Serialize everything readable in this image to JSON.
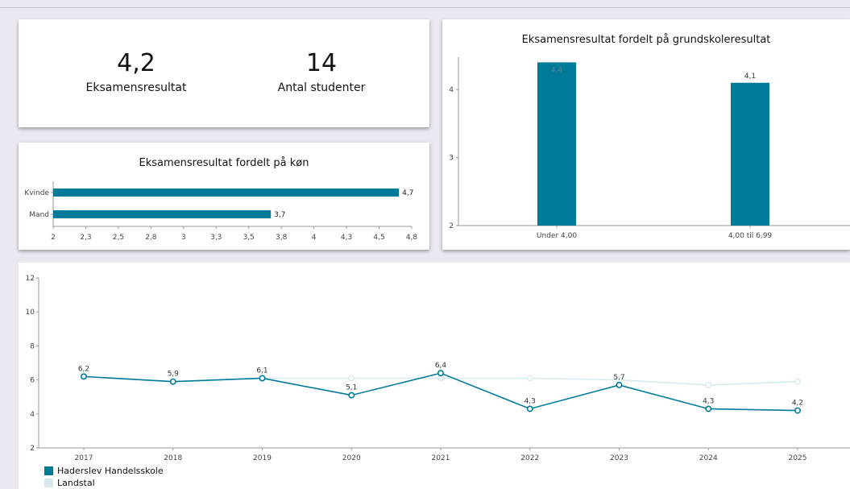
{
  "kpis": [
    {
      "value": "4,2",
      "label": "Eksamensresultat"
    },
    {
      "value": "14",
      "label": "Antal studenter"
    }
  ],
  "colors": {
    "primary": "#007a99",
    "secondary": "#d6e9ef",
    "axis": "#999999"
  },
  "chart_data": [
    {
      "type": "bar",
      "orientation": "horizontal",
      "title": "Eksamensresultat fordelt på køn",
      "categories": [
        "Kvinde",
        "Mand"
      ],
      "values": [
        4.7,
        3.7
      ],
      "data_labels": [
        "4,7",
        "3,7"
      ],
      "xlim": [
        2,
        4.8
      ],
      "xticks": [
        "2",
        "2,3",
        "2,5",
        "2,8",
        "3",
        "3,3",
        "3,5",
        "3,8",
        "4",
        "4,3",
        "4,5",
        "4,8"
      ],
      "grid": false
    },
    {
      "type": "bar",
      "title": "Eksamensresultat fordelt på grundskoleresultat",
      "categories": [
        "Under 4,00",
        "4,00 til 6,99"
      ],
      "values": [
        4.4,
        4.1
      ],
      "data_labels": [
        "4,4",
        "4,1"
      ],
      "ylim": [
        2,
        4.5
      ],
      "yticks": [
        "2",
        "3",
        "4"
      ],
      "grid": false
    },
    {
      "type": "line",
      "title": "",
      "x": [
        "2017",
        "2018",
        "2019",
        "2020",
        "2021",
        "2022",
        "2023",
        "2024",
        "2025"
      ],
      "ylim": [
        2,
        12
      ],
      "yticks": [
        "2",
        "4",
        "6",
        "8",
        "10",
        "12"
      ],
      "legend_position": "bottom-left",
      "grid": false,
      "series": [
        {
          "name": "Haderslev Handelsskole",
          "values": [
            6.2,
            5.9,
            6.1,
            5.1,
            6.4,
            4.3,
            5.7,
            4.3,
            4.2
          ],
          "labels": [
            "6,2",
            "5,9",
            "6,1",
            "5,1",
            "6,4",
            "4,3",
            "5,7",
            "4,3",
            "4,2"
          ],
          "color": "#007a99"
        },
        {
          "name": "Landstal",
          "values": [
            6.2,
            5.9,
            6.1,
            6.1,
            6.1,
            6.1,
            6.0,
            5.7,
            5.9
          ],
          "color": "#d6e9ef"
        }
      ]
    }
  ]
}
